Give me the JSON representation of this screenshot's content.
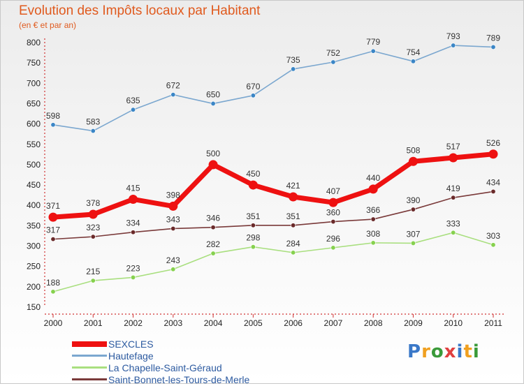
{
  "title": "Evolution des Impôts locaux par Habitant",
  "subtitle": "(en € et par an)",
  "brand": "Proxiti",
  "chart_data": {
    "type": "line",
    "title": "Evolution des Impôts locaux par Habitant",
    "subtitle": "(en € et par an)",
    "x": [
      2000,
      2001,
      2002,
      2003,
      2004,
      2005,
      2006,
      2007,
      2008,
      2009,
      2010,
      2011
    ],
    "ylim": [
      150,
      800
    ],
    "yticks": [
      150,
      200,
      250,
      300,
      350,
      400,
      450,
      500,
      550,
      600,
      650,
      700,
      750,
      800
    ],
    "grid": false,
    "legend_position": "bottom-left",
    "series": [
      {
        "name": "SEXCLES",
        "color": "#ee1111",
        "marker": "#ee1111",
        "values": [
          371,
          378,
          415,
          398,
          500,
          450,
          421,
          407,
          440,
          508,
          517,
          526
        ]
      },
      {
        "name": "Hautefage",
        "color": "#7ba7cf",
        "marker": "#3b86c6",
        "values": [
          598,
          583,
          635,
          672,
          650,
          670,
          735,
          752,
          779,
          754,
          793,
          789
        ]
      },
      {
        "name": "La Chapelle-Saint-Géraud",
        "color": "#a9df7f",
        "marker": "#86d14e",
        "values": [
          188,
          215,
          223,
          243,
          282,
          298,
          284,
          296,
          308,
          307,
          333,
          303
        ]
      },
      {
        "name": "Saint-Bonnet-les-Tours-de-Merle",
        "color": "#7a3a3a",
        "marker": "#6a2a2a",
        "values": [
          317,
          323,
          334,
          343,
          346,
          351,
          351,
          360,
          366,
          390,
          419,
          434
        ]
      }
    ]
  }
}
